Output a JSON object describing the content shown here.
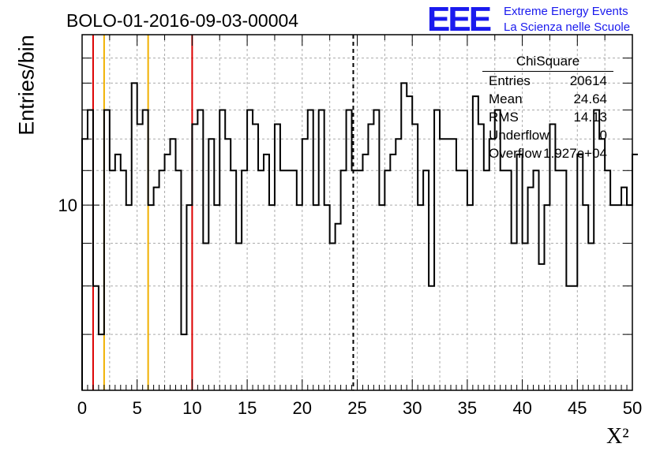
{
  "header": {
    "title": "BOLO-01-2016-09-03-00004"
  },
  "logo": {
    "mark": "EEE",
    "line1": "Extreme Energy Events",
    "line2": "La Scienza nelle Scuole",
    "color": "#1a1aee"
  },
  "stats_box": {
    "title": "ChiSquare",
    "rows": [
      {
        "label": "Entries",
        "value": "20614"
      },
      {
        "label": "Mean",
        "value": "24.64"
      },
      {
        "label": "RMS",
        "value": "14.13"
      },
      {
        "label": "Underflow",
        "value": "0"
      },
      {
        "label": "Overflow",
        "value": "1.927e+04"
      }
    ]
  },
  "chart_data": {
    "type": "line",
    "style": "step histogram",
    "title": "BOLO-01-2016-09-03-00004",
    "xlabel": "X²",
    "ylabel": "Entries/bin",
    "xlim": [
      0,
      50
    ],
    "ylim": [
      6,
      16
    ],
    "y_scale": "log",
    "grid": true,
    "bin_width": 0.5,
    "x_ticks": [
      "0",
      "5",
      "10",
      "15",
      "20",
      "25",
      "30",
      "35",
      "40",
      "45",
      "50"
    ],
    "y_tick_labels": [
      {
        "value": 10,
        "label": "10"
      }
    ],
    "bin_values": [
      12,
      13,
      8,
      7,
      13,
      11,
      11.5,
      11,
      10,
      14,
      12.5,
      13,
      10,
      10.5,
      11,
      11.5,
      12,
      11,
      7,
      10,
      12.5,
      13,
      9,
      12,
      10,
      13,
      12,
      11,
      9,
      11,
      13,
      12.5,
      11,
      11.5,
      10,
      12.5,
      11,
      11,
      11,
      10,
      12,
      13,
      10,
      13,
      10,
      9,
      9.5,
      11,
      13,
      11,
      11,
      11.5,
      12.5,
      13,
      10,
      11,
      11.5,
      12,
      14,
      13.5,
      12.5,
      10,
      11,
      8,
      13,
      12,
      12,
      12,
      11,
      11,
      10,
      13.5,
      12.5,
      11,
      12,
      13,
      11,
      11,
      9,
      11.5,
      9,
      10.5,
      11,
      8.5,
      10,
      12.5,
      11,
      11,
      8,
      8,
      11.5,
      10,
      9,
      13,
      12,
      11,
      10,
      10,
      10.5,
      10,
      11.5
    ],
    "reference_lines": [
      {
        "x": 1,
        "color": "#dd0000",
        "style": "solid"
      },
      {
        "x": 2,
        "color": "#f0b000",
        "style": "solid"
      },
      {
        "x": 6,
        "color": "#f0b000",
        "style": "solid"
      },
      {
        "x": 10,
        "color": "#dd0000",
        "style": "solid"
      },
      {
        "x": 24.64,
        "color": "#000000",
        "style": "dashed"
      }
    ]
  }
}
